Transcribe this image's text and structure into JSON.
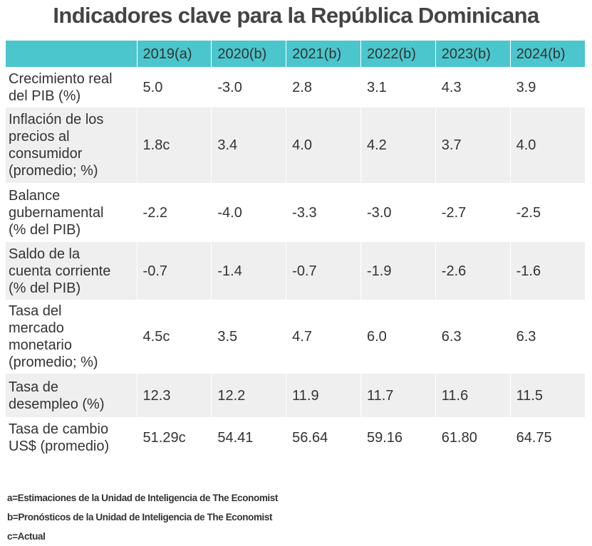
{
  "title": "Indicadores clave para la República Dominicana",
  "chart_data": {
    "type": "table",
    "title": "Indicadores clave para la República Dominicana",
    "columns": [
      "",
      "2019(a)",
      "2020(b)",
      "2021(b)",
      "2022(b)",
      "2023(b)",
      "2024(b)"
    ],
    "header_color": "#4bc6cc",
    "stripe_color": "#efefef",
    "rows": [
      {
        "label": "Crecimiento real\ndel PIB (%)",
        "values": [
          "5.0",
          "-3.0",
          "2.8",
          "3.1",
          "4.3",
          "3.9"
        ]
      },
      {
        "label": "Inflación de los\nprecios al\nconsumidor\n(promedio; %)",
        "values": [
          "1.8c",
          "3.4",
          "4.0",
          "4.2",
          "3.7",
          "4.0"
        ]
      },
      {
        "label": "Balance\ngubernamental\n(% del PIB)",
        "values": [
          "-2.2",
          "-4.0",
          "-3.3",
          "-3.0",
          "-2.7",
          "-2.5"
        ]
      },
      {
        "label": "Saldo de la\ncuenta corriente\n(% del PIB)",
        "values": [
          "-0.7",
          "-1.4",
          "-0.7",
          "-1.9",
          "-2.6",
          "-1.6"
        ]
      },
      {
        "label": "Tasa del\nmercado\nmonetario\n(promedio; %)",
        "values": [
          "4.5c",
          "3.5",
          "4.7",
          "6.0",
          "6.3",
          "6.3"
        ]
      },
      {
        "label": "Tasa de\ndesempleo (%)",
        "values": [
          "12.3",
          "12.2",
          "11.9",
          "11.7",
          "11.6",
          "11.5"
        ]
      },
      {
        "label": "Tasa de cambio\nUS$ (promedio)",
        "values": [
          "51.29c",
          "54.41",
          "56.64",
          "59.16",
          "61.80",
          "64.75"
        ]
      }
    ]
  },
  "notes": [
    "a=Estimaciones de la Unidad de Inteligencia de The Economist",
    "b=Pronósticos de la Unidad de Inteligencia de The Economist",
    "c=Actual"
  ]
}
